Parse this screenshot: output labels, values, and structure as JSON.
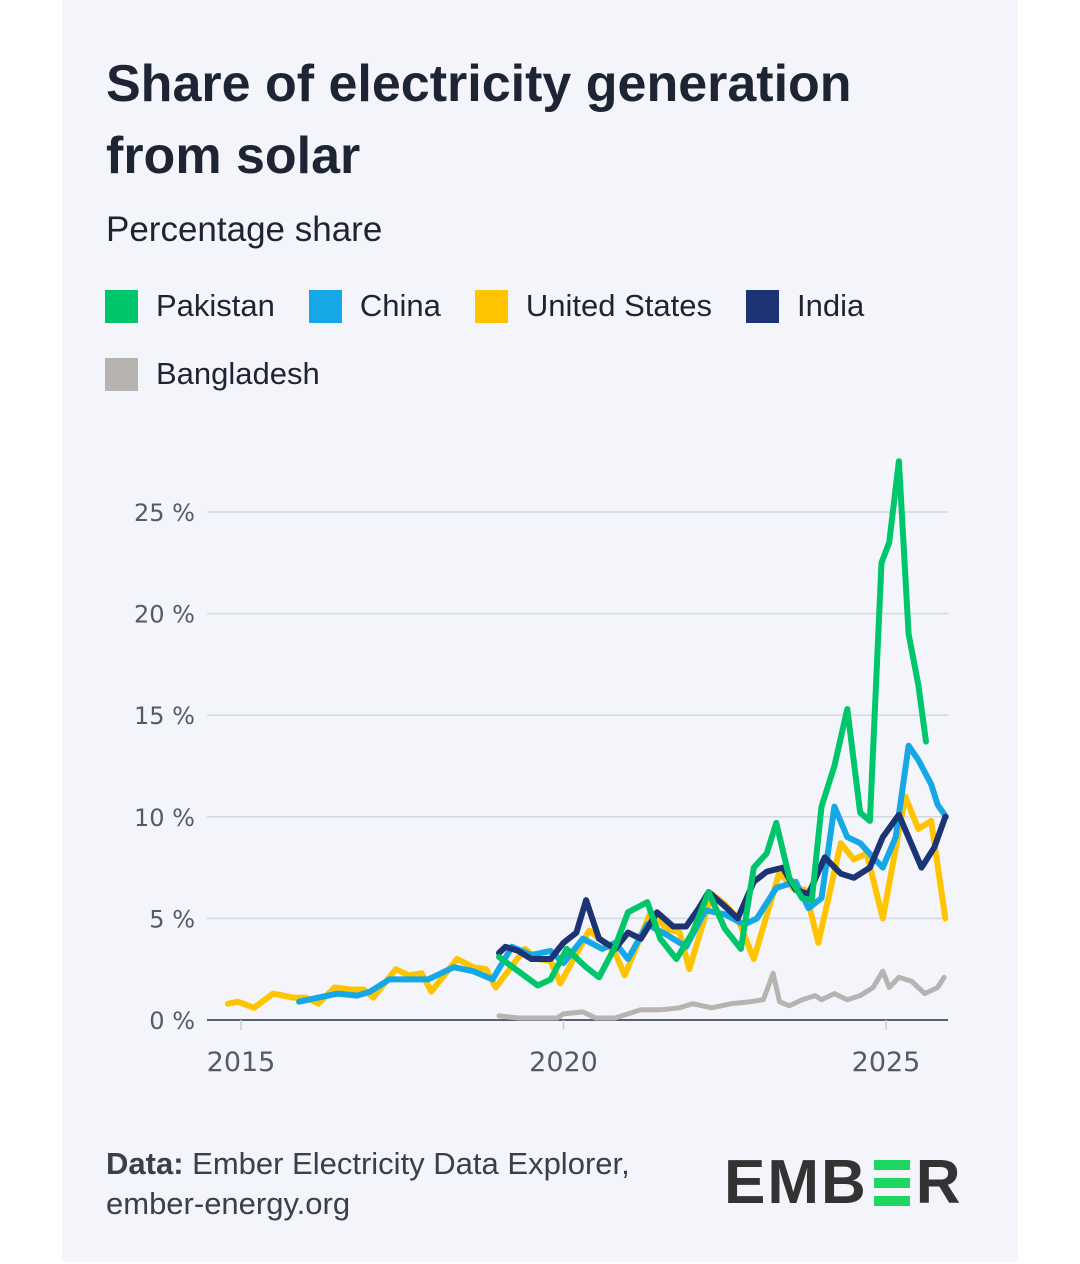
{
  "title": "Share of electricity generation from solar",
  "subtitle": "Percentage share",
  "source": {
    "label": "Data:",
    "text": "Ember Electricity Data Explorer, ember-energy.org"
  },
  "logo": {
    "text": "EMBER"
  },
  "colors": {
    "Pakistan": "#00c66b",
    "China": "#16a8e6",
    "United States": "#ffc400",
    "India": "#1c3474",
    "Bangladesh": "#b7b3b1"
  },
  "chart_data": {
    "type": "line",
    "title": "Share of electricity generation from solar",
    "subtitle": "Percentage share",
    "xlabel": "",
    "ylabel": "",
    "ylim": [
      0,
      27.5
    ],
    "xlim": [
      2014.75,
      2025.95
    ],
    "yticks": [
      {
        "v": 0,
        "label": "0 %"
      },
      {
        "v": 5,
        "label": "5 %"
      },
      {
        "v": 10,
        "label": "10 %"
      },
      {
        "v": 15,
        "label": "15 %"
      },
      {
        "v": 20,
        "label": "20 %"
      },
      {
        "v": 25,
        "label": "25 %"
      }
    ],
    "xticks": [
      {
        "v": 2015,
        "label": "2015"
      },
      {
        "v": 2020,
        "label": "2020"
      },
      {
        "v": 2025,
        "label": "2025"
      }
    ],
    "grid": true,
    "legend_position": "top",
    "series": [
      {
        "name": "Bangladesh",
        "points": [
          [
            2019.0,
            0.2
          ],
          [
            2019.3,
            0.1
          ],
          [
            2019.6,
            0.1
          ],
          [
            2019.9,
            0.1
          ],
          [
            2020.0,
            0.3
          ],
          [
            2020.3,
            0.4
          ],
          [
            2020.5,
            0.1
          ],
          [
            2020.8,
            0.1
          ],
          [
            2021.0,
            0.3
          ],
          [
            2021.2,
            0.5
          ],
          [
            2021.5,
            0.5
          ],
          [
            2021.8,
            0.6
          ],
          [
            2022.0,
            0.8
          ],
          [
            2022.3,
            0.6
          ],
          [
            2022.6,
            0.8
          ],
          [
            2022.9,
            0.9
          ],
          [
            2023.1,
            1.0
          ],
          [
            2023.25,
            2.3
          ],
          [
            2023.35,
            0.9
          ],
          [
            2023.5,
            0.7
          ],
          [
            2023.7,
            1.0
          ],
          [
            2023.9,
            1.2
          ],
          [
            2024.0,
            1.0
          ],
          [
            2024.2,
            1.3
          ],
          [
            2024.4,
            1.0
          ],
          [
            2024.6,
            1.2
          ],
          [
            2024.8,
            1.6
          ],
          [
            2024.95,
            2.4
          ],
          [
            2025.05,
            1.6
          ],
          [
            2025.2,
            2.1
          ],
          [
            2025.4,
            1.9
          ],
          [
            2025.6,
            1.3
          ],
          [
            2025.8,
            1.6
          ],
          [
            2025.9,
            2.1
          ]
        ]
      },
      {
        "name": "United States",
        "points": [
          [
            2014.8,
            0.8
          ],
          [
            2014.95,
            0.9
          ],
          [
            2015.2,
            0.6
          ],
          [
            2015.5,
            1.3
          ],
          [
            2015.8,
            1.1
          ],
          [
            2016.0,
            1.1
          ],
          [
            2016.2,
            0.8
          ],
          [
            2016.45,
            1.6
          ],
          [
            2016.7,
            1.5
          ],
          [
            2016.9,
            1.5
          ],
          [
            2017.05,
            1.1
          ],
          [
            2017.4,
            2.5
          ],
          [
            2017.6,
            2.2
          ],
          [
            2017.8,
            2.3
          ],
          [
            2017.95,
            1.4
          ],
          [
            2018.35,
            3.0
          ],
          [
            2018.6,
            2.6
          ],
          [
            2018.8,
            2.5
          ],
          [
            2018.95,
            1.6
          ],
          [
            2019.4,
            3.5
          ],
          [
            2019.6,
            3.0
          ],
          [
            2019.8,
            2.9
          ],
          [
            2019.95,
            1.8
          ],
          [
            2020.4,
            4.4
          ],
          [
            2020.6,
            3.9
          ],
          [
            2020.8,
            3.3
          ],
          [
            2020.95,
            2.2
          ],
          [
            2021.35,
            5.3
          ],
          [
            2021.6,
            4.5
          ],
          [
            2021.8,
            4.3
          ],
          [
            2021.95,
            2.5
          ],
          [
            2022.3,
            6.2
          ],
          [
            2022.5,
            5.7
          ],
          [
            2022.7,
            5.0
          ],
          [
            2022.95,
            3.0
          ],
          [
            2023.35,
            7.3
          ],
          [
            2023.55,
            6.5
          ],
          [
            2023.75,
            6.4
          ],
          [
            2023.95,
            3.8
          ],
          [
            2024.3,
            8.7
          ],
          [
            2024.5,
            7.9
          ],
          [
            2024.7,
            8.2
          ],
          [
            2024.95,
            5.0
          ],
          [
            2025.3,
            11.0
          ],
          [
            2025.5,
            9.4
          ],
          [
            2025.7,
            9.8
          ],
          [
            2025.92,
            5.0
          ]
        ]
      },
      {
        "name": "China",
        "points": [
          [
            2015.9,
            0.9
          ],
          [
            2016.2,
            1.1
          ],
          [
            2016.5,
            1.3
          ],
          [
            2016.8,
            1.2
          ],
          [
            2017.0,
            1.4
          ],
          [
            2017.3,
            2.0
          ],
          [
            2017.6,
            2.0
          ],
          [
            2017.9,
            2.0
          ],
          [
            2018.3,
            2.6
          ],
          [
            2018.6,
            2.4
          ],
          [
            2018.9,
            2.0
          ],
          [
            2019.2,
            3.6
          ],
          [
            2019.5,
            3.2
          ],
          [
            2019.8,
            3.4
          ],
          [
            2020.0,
            2.8
          ],
          [
            2020.3,
            4.0
          ],
          [
            2020.6,
            3.5
          ],
          [
            2020.8,
            3.8
          ],
          [
            2021.0,
            3.0
          ],
          [
            2021.3,
            4.7
          ],
          [
            2021.6,
            4.2
          ],
          [
            2021.9,
            3.6
          ],
          [
            2022.2,
            5.4
          ],
          [
            2022.5,
            5.2
          ],
          [
            2022.8,
            4.7
          ],
          [
            2023.0,
            5.0
          ],
          [
            2023.3,
            6.5
          ],
          [
            2023.6,
            6.8
          ],
          [
            2023.8,
            5.5
          ],
          [
            2024.0,
            6.0
          ],
          [
            2024.2,
            10.5
          ],
          [
            2024.4,
            9.0
          ],
          [
            2024.6,
            8.7
          ],
          [
            2024.8,
            8.0
          ],
          [
            2024.95,
            7.5
          ],
          [
            2025.15,
            9.0
          ],
          [
            2025.35,
            13.5
          ],
          [
            2025.5,
            12.8
          ],
          [
            2025.7,
            11.6
          ],
          [
            2025.8,
            10.6
          ],
          [
            2025.93,
            10.0
          ]
        ]
      },
      {
        "name": "India",
        "points": [
          [
            2019.0,
            3.3
          ],
          [
            2019.1,
            3.6
          ],
          [
            2019.3,
            3.4
          ],
          [
            2019.5,
            3.0
          ],
          [
            2019.8,
            3.0
          ],
          [
            2020.0,
            3.8
          ],
          [
            2020.2,
            4.3
          ],
          [
            2020.35,
            5.9
          ],
          [
            2020.55,
            4.0
          ],
          [
            2020.8,
            3.5
          ],
          [
            2021.0,
            4.3
          ],
          [
            2021.2,
            4.0
          ],
          [
            2021.45,
            5.3
          ],
          [
            2021.7,
            4.6
          ],
          [
            2021.9,
            4.6
          ],
          [
            2022.1,
            5.5
          ],
          [
            2022.25,
            6.3
          ],
          [
            2022.5,
            5.6
          ],
          [
            2022.7,
            5.0
          ],
          [
            2022.95,
            6.8
          ],
          [
            2023.15,
            7.3
          ],
          [
            2023.4,
            7.5
          ],
          [
            2023.6,
            6.4
          ],
          [
            2023.8,
            6.2
          ],
          [
            2024.05,
            8.0
          ],
          [
            2024.3,
            7.2
          ],
          [
            2024.5,
            7.0
          ],
          [
            2024.75,
            7.5
          ],
          [
            2024.95,
            9.0
          ],
          [
            2025.2,
            10.1
          ],
          [
            2025.55,
            7.5
          ],
          [
            2025.75,
            8.5
          ],
          [
            2025.92,
            10.0
          ]
        ]
      },
      {
        "name": "Pakistan",
        "points": [
          [
            2019.0,
            3.1
          ],
          [
            2019.3,
            2.4
          ],
          [
            2019.6,
            1.7
          ],
          [
            2019.8,
            2.0
          ],
          [
            2020.05,
            3.5
          ],
          [
            2020.35,
            2.6
          ],
          [
            2020.55,
            2.1
          ],
          [
            2020.8,
            3.6
          ],
          [
            2021.0,
            5.3
          ],
          [
            2021.3,
            5.8
          ],
          [
            2021.5,
            4.0
          ],
          [
            2021.75,
            3.0
          ],
          [
            2022.0,
            4.3
          ],
          [
            2022.25,
            6.3
          ],
          [
            2022.5,
            4.5
          ],
          [
            2022.75,
            3.5
          ],
          [
            2022.95,
            7.5
          ],
          [
            2023.15,
            8.2
          ],
          [
            2023.3,
            9.7
          ],
          [
            2023.5,
            7.0
          ],
          [
            2023.7,
            6.0
          ],
          [
            2023.85,
            5.9
          ],
          [
            2024.0,
            10.5
          ],
          [
            2024.2,
            12.5
          ],
          [
            2024.4,
            15.3
          ],
          [
            2024.6,
            10.2
          ],
          [
            2024.75,
            9.8
          ],
          [
            2024.93,
            22.5
          ],
          [
            2025.05,
            23.5
          ],
          [
            2025.2,
            27.5
          ],
          [
            2025.35,
            19.0
          ],
          [
            2025.5,
            16.5
          ],
          [
            2025.62,
            13.7
          ]
        ]
      }
    ]
  }
}
